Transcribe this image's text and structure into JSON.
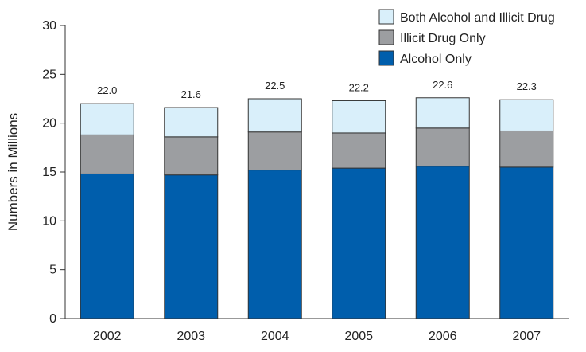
{
  "chart_data": {
    "type": "bar",
    "stacked": true,
    "categories": [
      "2002",
      "2003",
      "2004",
      "2005",
      "2006",
      "2007"
    ],
    "series": [
      {
        "name": "Alcohol Only",
        "values": [
          14.8,
          14.7,
          15.2,
          15.4,
          15.6,
          15.5
        ],
        "color": "#005EAC"
      },
      {
        "name": "Illicit Drug Only",
        "values": [
          4.0,
          3.9,
          3.9,
          3.6,
          3.9,
          3.7
        ],
        "color": "#9C9EA1"
      },
      {
        "name": "Both Alcohol and Illicit Drug",
        "values": [
          3.2,
          3.0,
          3.4,
          3.3,
          3.1,
          3.2
        ],
        "color": "#D9EFFA"
      }
    ],
    "totals": [
      "22.0",
      "21.6",
      "22.5",
      "22.2",
      "22.6",
      "22.3"
    ],
    "ylabel": "Numbers in Millions",
    "xlabel": "",
    "ylim": [
      0,
      30
    ],
    "yticks": [
      0,
      5,
      10,
      15,
      20,
      25,
      30
    ],
    "grid": false,
    "legend_placement": "top-right",
    "legend_order": [
      "Both Alcohol and Illicit Drug",
      "Illicit Drug Only",
      "Alcohol Only"
    ]
  }
}
